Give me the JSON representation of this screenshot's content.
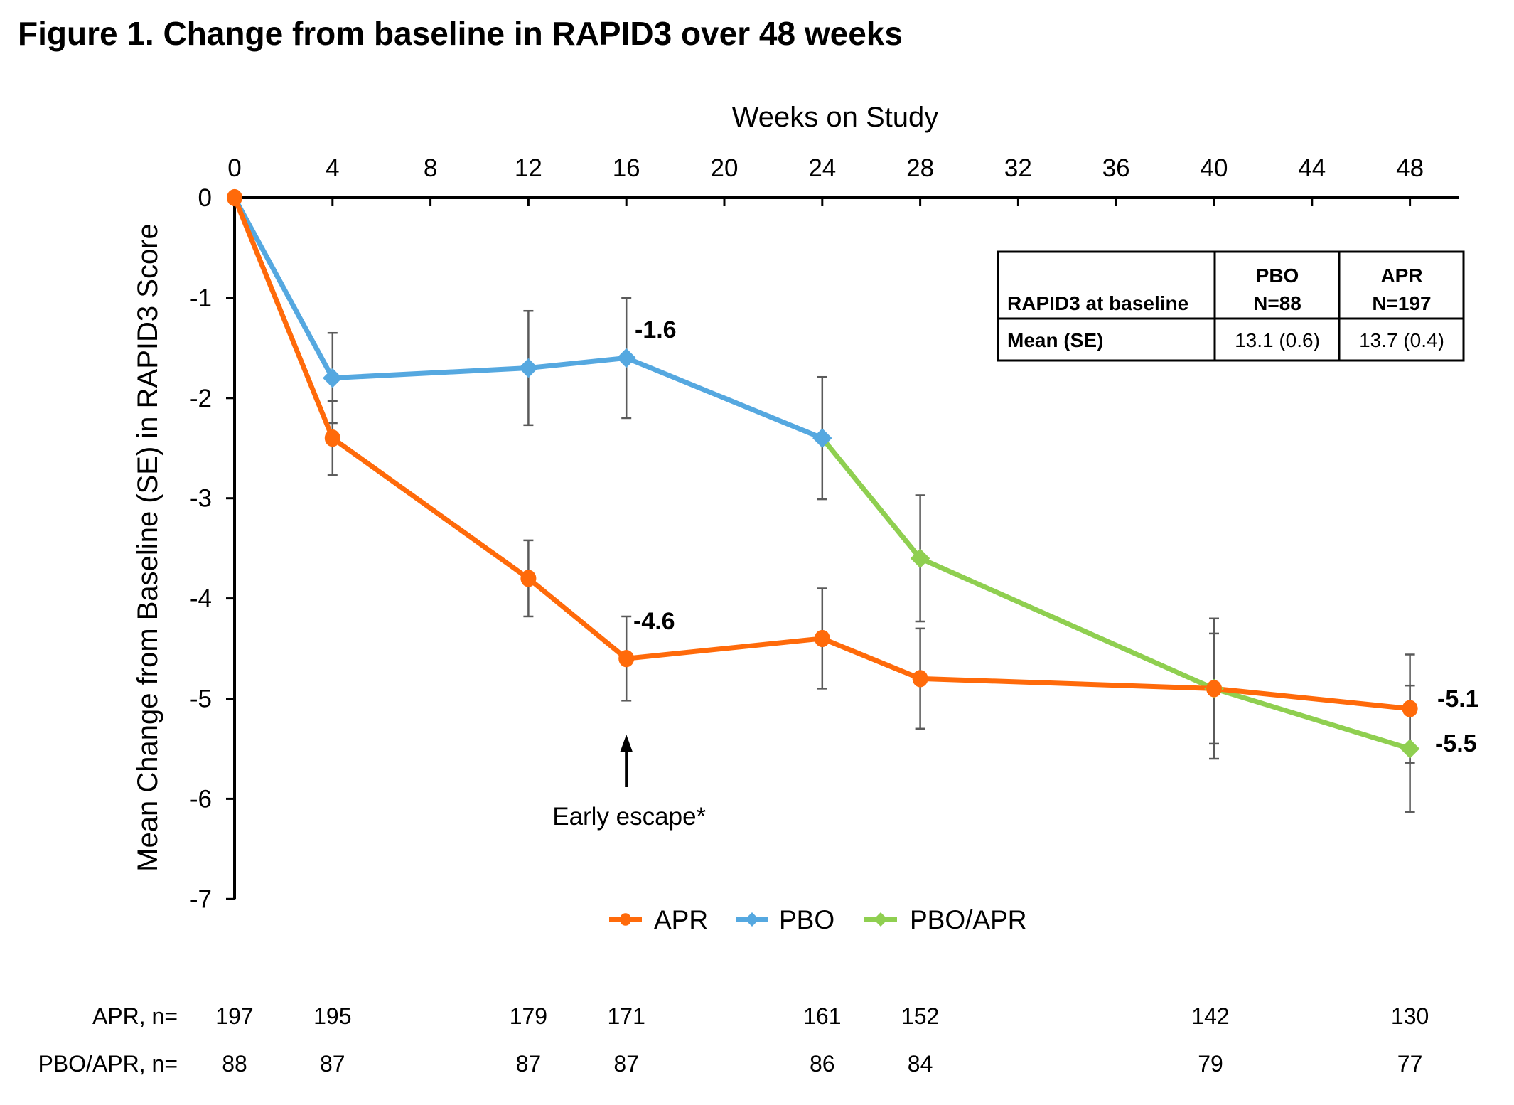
{
  "title": "Figure 1. Change from baseline in RAPID3 over 48 weeks",
  "chart_data": {
    "type": "line",
    "title": "Figure 1. Change from baseline in RAPID3 over 48 weeks",
    "xlabel": "Weeks on Study",
    "ylabel": "Mean Change from Baseline (SE) in RAPID3 Score",
    "xlim": [
      0,
      50
    ],
    "ylim": [
      -7,
      0
    ],
    "x_ticks": [
      "0",
      "4",
      "8",
      "12",
      "16",
      "20",
      "24",
      "28",
      "32",
      "36",
      "40",
      "44",
      "48"
    ],
    "x_tick_values": [
      0,
      4,
      8,
      12,
      16,
      20,
      24,
      28,
      32,
      36,
      40,
      44,
      48
    ],
    "y_ticks": [
      "0",
      "-1",
      "-2",
      "-3",
      "-4",
      "-5",
      "-6",
      "-7"
    ],
    "y_tick_values": [
      0,
      -1,
      -2,
      -3,
      -4,
      -5,
      -6,
      -7
    ],
    "x_axis_position": "top",
    "grid": false,
    "legend_position": "bottom-center",
    "series": [
      {
        "name": "APR",
        "color": "#FF6A0A",
        "marker": "circle",
        "x": [
          0,
          4,
          12,
          16,
          24,
          28,
          40,
          48
        ],
        "values": [
          0,
          -2.4,
          -3.8,
          -4.6,
          -4.4,
          -4.8,
          -4.9,
          -5.1
        ],
        "se": [
          0,
          0.37,
          0.38,
          0.42,
          0.5,
          0.5,
          0.55,
          0.54
        ]
      },
      {
        "name": "PBO",
        "color": "#55A8E0",
        "marker": "diamond",
        "x": [
          0,
          4,
          12,
          16,
          24
        ],
        "values": [
          0,
          -1.8,
          -1.7,
          -1.6,
          -2.4
        ],
        "se": [
          0,
          0.45,
          0.57,
          0.6,
          0.61
        ]
      },
      {
        "name": "PBO/APR",
        "color": "#8FCF50",
        "marker": "diamond",
        "x": [
          24,
          28,
          40,
          48
        ],
        "values": [
          -2.4,
          -3.6,
          -4.9,
          -5.5
        ],
        "se": [
          0,
          0.63,
          0.7,
          0.63
        ]
      }
    ],
    "data_labels": [
      {
        "series": "PBO",
        "x": 16,
        "text": "-1.6"
      },
      {
        "series": "APR",
        "x": 16,
        "text": "-4.6"
      },
      {
        "series": "APR",
        "x": 48,
        "text": "-5.1"
      },
      {
        "series": "PBO/APR",
        "x": 48,
        "text": "-5.5"
      }
    ],
    "annotation": {
      "text": "Early escape*",
      "x": 16,
      "arrow": "up"
    }
  },
  "baseline_table": {
    "header": [
      "RAPID3 at baseline",
      "PBO\nN=88",
      "APR\nN=197"
    ],
    "header_pbo": [
      "PBO",
      "N=88"
    ],
    "header_apr": [
      "APR",
      "N=197"
    ],
    "row_label": "Mean (SE)",
    "pbo_value": "13.1 (0.6)",
    "apr_value": "13.7 (0.4)"
  },
  "n_table": {
    "rows": [
      {
        "label": "APR, n=",
        "weeks": [
          0,
          4,
          12,
          16,
          24,
          28,
          40,
          48
        ],
        "values": [
          "197",
          "195",
          "179",
          "171",
          "161",
          "152",
          "142",
          "130"
        ]
      },
      {
        "label": "PBO/APR, n=",
        "weeks": [
          0,
          4,
          12,
          16,
          24,
          28,
          40,
          48
        ],
        "values": [
          "88",
          "87",
          "87",
          "87",
          "86",
          "84",
          "79",
          "77"
        ]
      }
    ]
  }
}
